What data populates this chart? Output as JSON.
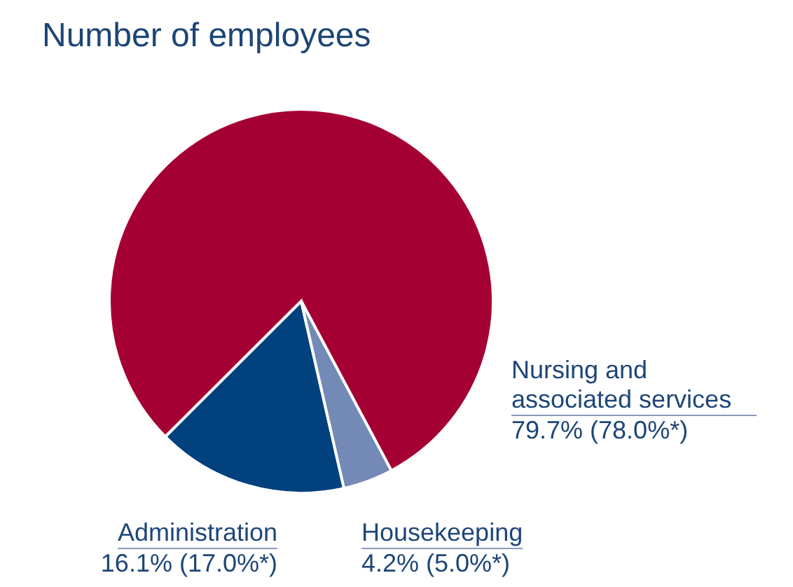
{
  "chart_data": {
    "type": "pie",
    "title": "Number of employees",
    "categories": [
      "Nursing and associated services",
      "Administration",
      "Housekeeping"
    ],
    "values": [
      79.7,
      16.1,
      4.2
    ],
    "colors": [
      "#a50034",
      "#00417e",
      "#7389b6"
    ],
    "value_labels": [
      "79.7% (78.0%*)",
      "16.1% (17.0%*)",
      "4.2% (5.0%*)"
    ]
  }
}
